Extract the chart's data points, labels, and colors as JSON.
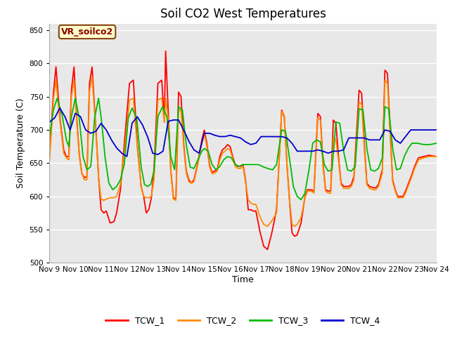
{
  "title": "Soil CO2 West Temperatures",
  "xlabel": "Time",
  "ylabel": "Soil Temperature (C)",
  "ylim": [
    500,
    860
  ],
  "yticks": [
    500,
    550,
    600,
    650,
    700,
    750,
    800,
    850
  ],
  "xlim": [
    0,
    15
  ],
  "xtick_labels": [
    "Nov 9",
    "Nov 10",
    "Nov 11",
    "Nov 12",
    "Nov 13",
    "Nov 14",
    "Nov 15",
    "Nov 16",
    "Nov 17",
    "Nov 18",
    "Nov 19",
    "Nov 20",
    "Nov 21",
    "Nov 22",
    "Nov 23",
    "Nov 24"
  ],
  "annotation_text": "VR_soilco2",
  "annotation_color": "#8B0000",
  "annotation_bg": "#FFFFCC",
  "annotation_border": "#8B4513",
  "line_colors": [
    "#FF0000",
    "#FF8C00",
    "#00BB00",
    "#0000CC"
  ],
  "line_labels": [
    "TCW_1",
    "TCW_2",
    "TCW_3",
    "TCW_4"
  ],
  "line_width": 1.3,
  "bg_outer": "#FFFFFF",
  "bg_inner": "#E8E8E8",
  "title_fontsize": 12,
  "axis_label_fontsize": 9,
  "tick_fontsize": 7.5
}
